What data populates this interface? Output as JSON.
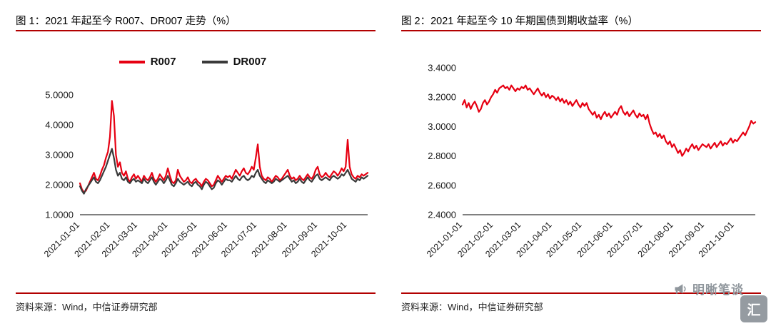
{
  "page": {
    "background": "#ffffff"
  },
  "watermark": {
    "text": "明晰笔谈",
    "color": "#8f969c",
    "icon": "megaphone-icon"
  },
  "logo": {
    "glyph": "汇"
  },
  "chart_data": [
    {
      "type": "line",
      "title": "图 1：2021 年起至今 R007、DR007 走势（%）",
      "source": "资料来源：Wind，中信证券研究部",
      "xlabel": "",
      "ylabel": "",
      "ylim": [
        1.0,
        5.0
      ],
      "yticks": [
        1.0,
        2.0,
        3.0,
        4.0,
        5.0
      ],
      "grid": false,
      "legend_position": "top-center",
      "x_total_days": 294,
      "xtick_days": [
        0,
        31,
        59,
        90,
        120,
        151,
        181,
        212,
        243,
        273
      ],
      "xtick_labels": [
        "2021-01-01",
        "2021-02-01",
        "2021-03-01",
        "2021-04-01",
        "2021-05-01",
        "2021-06-01",
        "2021-07-01",
        "2021-08-01",
        "2021-09-01",
        "2021-10-01"
      ],
      "series": [
        {
          "name": "R007",
          "color": "#e60012",
          "values": [
            2.05,
            1.85,
            1.75,
            1.8,
            1.95,
            2.1,
            2.25,
            2.4,
            2.2,
            2.15,
            2.3,
            2.5,
            2.65,
            2.9,
            3.1,
            3.6,
            4.8,
            4.3,
            3.0,
            2.6,
            2.75,
            2.4,
            2.3,
            2.45,
            2.2,
            2.1,
            2.25,
            2.35,
            2.2,
            2.3,
            2.2,
            2.1,
            2.3,
            2.2,
            2.15,
            2.25,
            2.4,
            2.2,
            2.1,
            2.2,
            2.35,
            2.25,
            2.15,
            2.3,
            2.55,
            2.3,
            2.1,
            2.05,
            2.15,
            2.5,
            2.3,
            2.2,
            2.1,
            2.15,
            2.25,
            2.1,
            2.05,
            2.15,
            2.2,
            2.1,
            2.05,
            1.95,
            2.1,
            2.2,
            2.15,
            2.05,
            1.95,
            2.0,
            2.15,
            2.3,
            2.2,
            2.1,
            2.2,
            2.3,
            2.25,
            2.3,
            2.2,
            2.35,
            2.5,
            2.4,
            2.3,
            2.45,
            2.55,
            2.4,
            2.35,
            2.45,
            2.6,
            2.5,
            2.9,
            3.35,
            2.6,
            2.3,
            2.2,
            2.15,
            2.25,
            2.2,
            2.1,
            2.2,
            2.3,
            2.25,
            2.15,
            2.2,
            2.3,
            2.4,
            2.5,
            2.3,
            2.2,
            2.25,
            2.15,
            2.2,
            2.3,
            2.2,
            2.15,
            2.25,
            2.35,
            2.25,
            2.2,
            2.3,
            2.5,
            2.6,
            2.35,
            2.25,
            2.3,
            2.4,
            2.3,
            2.25,
            2.35,
            2.45,
            2.4,
            2.3,
            2.4,
            2.55,
            2.45,
            2.6,
            3.5,
            2.6,
            2.35,
            2.25,
            2.2,
            2.3,
            2.25,
            2.35,
            2.3,
            2.35,
            2.4
          ]
        },
        {
          "name": "DR007",
          "color": "#3a3a3a",
          "values": [
            1.95,
            1.8,
            1.7,
            1.85,
            1.95,
            2.05,
            2.15,
            2.25,
            2.1,
            2.05,
            2.15,
            2.3,
            2.45,
            2.6,
            2.8,
            3.0,
            3.2,
            2.9,
            2.5,
            2.3,
            2.4,
            2.2,
            2.15,
            2.25,
            2.1,
            2.05,
            2.15,
            2.2,
            2.1,
            2.15,
            2.1,
            2.05,
            2.2,
            2.1,
            2.05,
            2.15,
            2.25,
            2.1,
            2.0,
            2.1,
            2.2,
            2.15,
            2.05,
            2.15,
            2.3,
            2.15,
            2.0,
            1.95,
            2.05,
            2.2,
            2.1,
            2.05,
            2.0,
            2.05,
            2.1,
            2.0,
            1.95,
            2.05,
            2.1,
            2.0,
            1.95,
            1.85,
            2.0,
            2.1,
            2.05,
            1.95,
            1.85,
            1.9,
            2.05,
            2.15,
            2.1,
            2.0,
            2.1,
            2.2,
            2.15,
            2.15,
            2.1,
            2.2,
            2.3,
            2.2,
            2.15,
            2.25,
            2.3,
            2.2,
            2.15,
            2.2,
            2.3,
            2.25,
            2.4,
            2.5,
            2.3,
            2.2,
            2.1,
            2.05,
            2.15,
            2.1,
            2.05,
            2.1,
            2.2,
            2.15,
            2.1,
            2.15,
            2.2,
            2.25,
            2.3,
            2.2,
            2.1,
            2.15,
            2.05,
            2.1,
            2.2,
            2.1,
            2.05,
            2.15,
            2.25,
            2.15,
            2.1,
            2.2,
            2.3,
            2.35,
            2.2,
            2.15,
            2.2,
            2.25,
            2.2,
            2.15,
            2.25,
            2.3,
            2.25,
            2.2,
            2.25,
            2.35,
            2.3,
            2.4,
            2.5,
            2.35,
            2.2,
            2.15,
            2.1,
            2.2,
            2.15,
            2.25,
            2.2,
            2.25,
            2.3
          ]
        }
      ]
    },
    {
      "type": "line",
      "title": "图 2：2021 年起至今 10 年期国债到期收益率（%）",
      "source": "资料来源：Wind，中信证券研究部",
      "xlabel": "",
      "ylabel": "",
      "ylim": [
        2.4,
        3.4
      ],
      "yticks": [
        2.4,
        2.6,
        2.8,
        3.0,
        3.2,
        3.4
      ],
      "grid": false,
      "legend_position": "none",
      "x_total_days": 294,
      "xtick_days": [
        0,
        31,
        59,
        90,
        120,
        151,
        181,
        212,
        243,
        273
      ],
      "xtick_labels": [
        "2021-01-01",
        "2021-02-01",
        "2021-03-01",
        "2021-04-01",
        "2021-05-01",
        "2021-06-01",
        "2021-07-01",
        "2021-08-01",
        "2021-09-01",
        "2021-10-01"
      ],
      "series": [
        {
          "name": "",
          "color": "#e60012",
          "values": [
            3.15,
            3.18,
            3.13,
            3.16,
            3.12,
            3.15,
            3.17,
            3.14,
            3.1,
            3.12,
            3.16,
            3.18,
            3.15,
            3.17,
            3.2,
            3.22,
            3.25,
            3.23,
            3.26,
            3.27,
            3.28,
            3.26,
            3.27,
            3.25,
            3.28,
            3.26,
            3.24,
            3.26,
            3.25,
            3.27,
            3.26,
            3.28,
            3.25,
            3.26,
            3.24,
            3.22,
            3.24,
            3.26,
            3.23,
            3.21,
            3.23,
            3.2,
            3.22,
            3.19,
            3.21,
            3.2,
            3.18,
            3.2,
            3.17,
            3.19,
            3.16,
            3.18,
            3.15,
            3.17,
            3.14,
            3.16,
            3.18,
            3.15,
            3.13,
            3.16,
            3.14,
            3.16,
            3.12,
            3.1,
            3.08,
            3.1,
            3.06,
            3.08,
            3.05,
            3.08,
            3.1,
            3.07,
            3.09,
            3.06,
            3.08,
            3.1,
            3.08,
            3.12,
            3.14,
            3.1,
            3.08,
            3.1,
            3.07,
            3.09,
            3.11,
            3.08,
            3.06,
            3.09,
            3.07,
            3.08,
            3.05,
            3.08,
            3.02,
            2.98,
            2.95,
            2.96,
            2.93,
            2.95,
            2.92,
            2.94,
            2.9,
            2.88,
            2.9,
            2.86,
            2.88,
            2.85,
            2.82,
            2.84,
            2.8,
            2.82,
            2.85,
            2.83,
            2.86,
            2.88,
            2.85,
            2.87,
            2.84,
            2.86,
            2.88,
            2.87,
            2.86,
            2.88,
            2.85,
            2.87,
            2.89,
            2.86,
            2.88,
            2.9,
            2.87,
            2.89,
            2.88,
            2.9,
            2.92,
            2.89,
            2.91,
            2.9,
            2.92,
            2.94,
            2.96,
            2.94,
            2.97,
            3.0,
            3.04,
            3.02,
            3.03
          ]
        }
      ]
    }
  ]
}
